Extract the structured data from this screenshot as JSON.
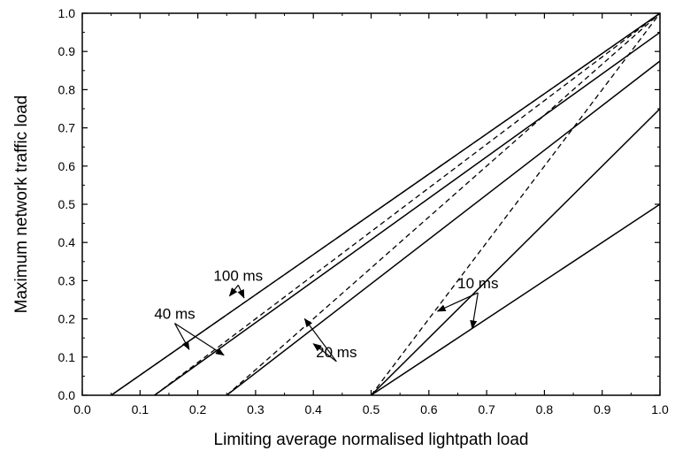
{
  "chart_data": {
    "type": "line",
    "title": "",
    "xlabel": "Limiting average normalised lightpath load",
    "ylabel": "Maximum network traffic load",
    "xlim": [
      0.0,
      1.0
    ],
    "ylim": [
      0.0,
      1.0
    ],
    "xticks": [
      "0.0",
      "0.1",
      "0.2",
      "0.3",
      "0.4",
      "0.5",
      "0.6",
      "0.7",
      "0.8",
      "0.9",
      "1.0"
    ],
    "yticks": [
      "0.0",
      "0.1",
      "0.2",
      "0.3",
      "0.4",
      "0.5",
      "0.6",
      "0.7",
      "0.8",
      "0.9",
      "1.0"
    ],
    "grid": false,
    "legend": "none",
    "series": [
      {
        "style": "solid",
        "points": [
          [
            0.05,
            0.0
          ],
          [
            1.0,
            1.0
          ]
        ]
      },
      {
        "style": "dashed",
        "points": [
          [
            0.05,
            0.0
          ],
          [
            1.0,
            1.0
          ]
        ]
      },
      {
        "style": "solid",
        "points": [
          [
            0.125,
            0.0
          ],
          [
            1.0,
            0.95
          ]
        ]
      },
      {
        "style": "dashed",
        "points": [
          [
            0.125,
            0.0
          ],
          [
            1.0,
            1.0
          ]
        ]
      },
      {
        "style": "solid",
        "points": [
          [
            0.25,
            0.0
          ],
          [
            1.0,
            0.875
          ]
        ]
      },
      {
        "style": "dashed",
        "points": [
          [
            0.25,
            0.0
          ],
          [
            1.0,
            1.0
          ]
        ]
      },
      {
        "style": "solid",
        "points": [
          [
            0.5,
            0.0
          ],
          [
            1.0,
            0.75
          ]
        ]
      },
      {
        "style": "dashed",
        "points": [
          [
            0.5,
            0.0
          ],
          [
            1.0,
            1.0
          ]
        ]
      },
      {
        "style": "solid",
        "points": [
          [
            0.5,
            0.0
          ],
          [
            1.0,
            0.5
          ]
        ]
      }
    ],
    "annotations": [
      {
        "text": "100 ms",
        "x": 0.27,
        "y": 0.3,
        "arrows": [
          [
            0.255,
            0.26
          ],
          [
            0.28,
            0.255
          ]
        ]
      },
      {
        "text": "40 ms",
        "x": 0.16,
        "y": 0.2,
        "arrows": [
          [
            0.185,
            0.12
          ],
          [
            0.245,
            0.105
          ]
        ]
      },
      {
        "text": "20 ms",
        "x": 0.44,
        "y": 0.1,
        "arrows": [
          [
            0.385,
            0.2
          ],
          [
            0.4,
            0.135
          ]
        ]
      },
      {
        "text": "10 ms",
        "x": 0.685,
        "y": 0.28,
        "arrows": [
          [
            0.615,
            0.22
          ],
          [
            0.675,
            0.175
          ]
        ]
      }
    ]
  }
}
